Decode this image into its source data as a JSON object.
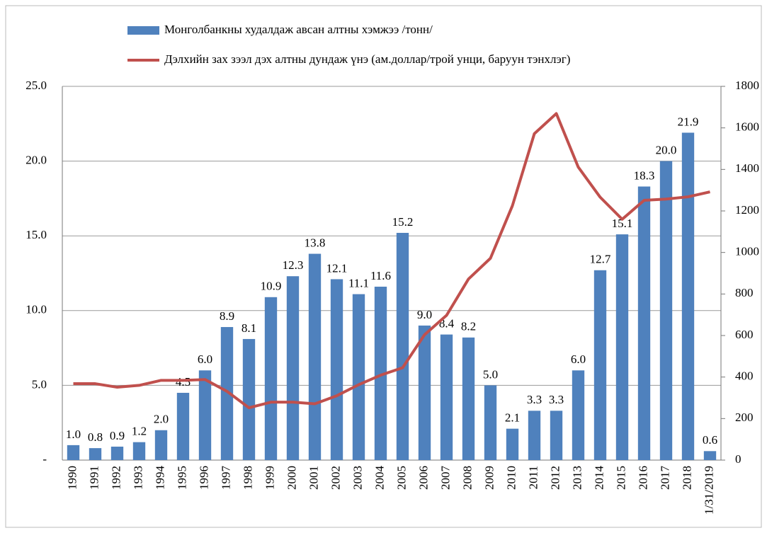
{
  "chart_data": {
    "type": "bar-line",
    "categories": [
      "1990",
      "1991",
      "1992",
      "1993",
      "1994",
      "1995",
      "1996",
      "1997",
      "1998",
      "1999",
      "2000",
      "2001",
      "2002",
      "2003",
      "2004",
      "2005",
      "2006",
      "2007",
      "2008",
      "2009",
      "2010",
      "2011",
      "2012",
      "2013",
      "2014",
      "2015",
      "2016",
      "2017",
      "2018",
      "1/31/2019"
    ],
    "series": [
      {
        "name": "Монголбанкны худалдаж авсан алтны хэмжээ /тонн/",
        "type": "bar",
        "color": "#4f81bd",
        "values": [
          1.0,
          0.8,
          0.9,
          1.2,
          2.0,
          4.5,
          6.0,
          8.9,
          8.1,
          10.9,
          12.3,
          13.8,
          12.1,
          11.1,
          11.6,
          15.2,
          9.0,
          8.4,
          8.2,
          5.0,
          2.1,
          3.3,
          3.3,
          6.0,
          12.7,
          15.1,
          18.3,
          20.0,
          21.9,
          0.6
        ],
        "value_labels": [
          "1.0",
          "0.8",
          "0.9",
          "1.2",
          "2.0",
          "4.5",
          "6.0",
          "8.9",
          "8.1",
          "10.9",
          "12.3",
          "13.8",
          "12.1",
          "11.1",
          "11.6",
          "15.2",
          "9.0",
          "8.4",
          "8.2",
          "5.0",
          "2.1",
          "3.3",
          "3.3",
          "6.0",
          "12.7",
          "15.1",
          "18.3",
          "20.0",
          "21.9",
          "0.6"
        ]
      },
      {
        "name": "Дэлхийн зах зээл дэх алтны дундаж үнэ (ам.доллар/трой унци, баруун тэнхлэг)",
        "type": "line",
        "color": "#c0504d",
        "axis": "y2",
        "values": [
          368,
          368,
          351,
          360,
          384,
          384,
          388,
          331,
          252,
          279,
          279,
          271,
          310,
          363,
          409,
          445,
          604,
          697,
          872,
          972,
          1225,
          1572,
          1669,
          1411,
          1266,
          1160,
          1251,
          1257,
          1268,
          1292
        ]
      }
    ],
    "ylim": [
      0,
      25
    ],
    "yticks": [
      {
        "value": 0,
        "label": "-"
      },
      {
        "value": 5,
        "label": "5.0"
      },
      {
        "value": 10,
        "label": "10.0"
      },
      {
        "value": 15,
        "label": "15.0"
      },
      {
        "value": 20,
        "label": "20.0"
      },
      {
        "value": 25,
        "label": "25.0"
      }
    ],
    "y2lim": [
      0,
      1800
    ],
    "y2ticks": [
      0,
      200,
      400,
      600,
      800,
      1000,
      1200,
      1400,
      1600,
      1800
    ],
    "grid": true,
    "legend": "top"
  }
}
